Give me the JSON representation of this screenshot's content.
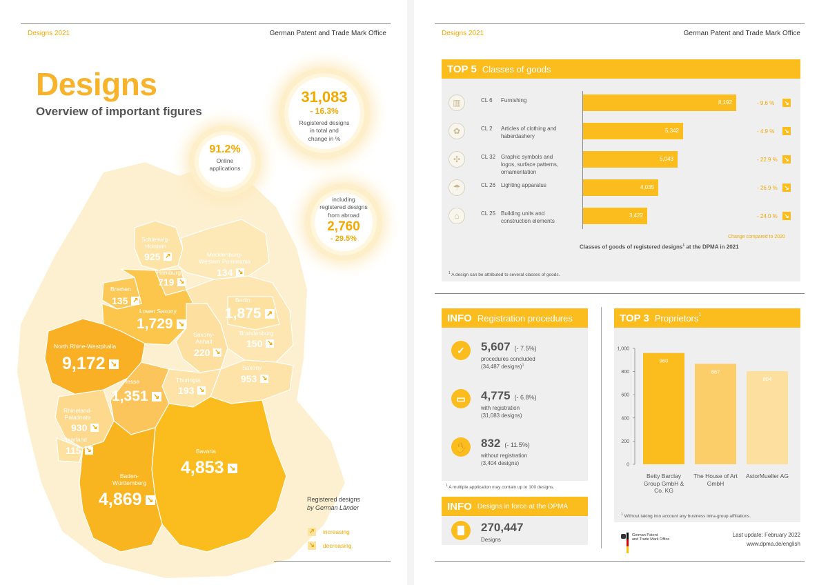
{
  "header": {
    "left_title": "Designs 2021",
    "publisher": "German Patent and Trade Mark Office"
  },
  "left": {
    "title": "Designs",
    "subtitle": "Overview of important figures",
    "total": {
      "value": "31,083",
      "change": "- 16.3%",
      "label1": "Registered designs",
      "label2": "in total and",
      "label3": "change in %"
    },
    "online": {
      "value": "91.2%",
      "label1": "Online",
      "label2": "applications"
    },
    "abroad": {
      "label1": "including",
      "label2": "registered designs",
      "label3": "from abroad",
      "value": "2,760",
      "change": "- 29.5%"
    },
    "regions": {
      "sh": {
        "name1": "Schleswig-",
        "name2": "Holstein",
        "value": "925"
      },
      "mv": {
        "name1": "Mecklenburg-",
        "name2": "Western Pomerania",
        "value": "134"
      },
      "hh": {
        "name": "Hamburg",
        "value": "719"
      },
      "hb": {
        "name": "Bremen",
        "value": "135"
      },
      "ni": {
        "name": "Lower Saxony",
        "value": "1,729"
      },
      "be": {
        "name": "Berlin",
        "value": "1,875"
      },
      "st": {
        "name1": "Saxony-",
        "name2": "Anhalt",
        "value": "220"
      },
      "bb": {
        "name": "Brandenburg",
        "value": "150"
      },
      "nw": {
        "name": "North Rhine-Westphalia",
        "value": "9,172"
      },
      "sn": {
        "name": "Saxony",
        "value": "953"
      },
      "he": {
        "name": "Hesse",
        "value": "1,351"
      },
      "th": {
        "name": "Thuringia",
        "value": "193"
      },
      "rp": {
        "name1": "Rhineland-",
        "name2": "Palatinate",
        "value": "930"
      },
      "sl": {
        "name": "Saarland",
        "value": "115"
      },
      "by": {
        "name": "Bavaria",
        "value": "4,853"
      },
      "bw": {
        "name1": "Baden-",
        "name2": "Württemberg",
        "value": "4,869"
      }
    },
    "legend": {
      "title1": "Registered designs",
      "title2": "by German Länder",
      "increasing": "increasing",
      "decreasing": "decreasing"
    }
  },
  "top5": {
    "label_top": "TOP 5",
    "label_rest": "Classes of goods",
    "caption": "Classes of goods of registered designs",
    "caption_sup": "1",
    "caption_end": " at the DPMA in 2021",
    "change_note": "Change compared to 2020",
    "footnote": "A design can be attributed to several classes of goods.",
    "footnote_sup": "1",
    "rows": [
      {
        "code": "CL 6",
        "name": "Furnishing",
        "value": "8,192",
        "change": "- 9.6 %"
      },
      {
        "code": "CL 2",
        "name": "Articles of clothing and haberdashery",
        "value": "5,342",
        "change": "- 4.9 %"
      },
      {
        "code": "CL 32",
        "name": "Graphic symbols and logos, surface patterns, ornamentation",
        "value": "5,043",
        "change": "- 22.9 %"
      },
      {
        "code": "CL 26",
        "name": "Lighting apparatus",
        "value": "4,035",
        "change": "- 26.9 %"
      },
      {
        "code": "CL 25",
        "name": "Building units and construction elements",
        "value": "3,422",
        "change": "- 24.0 %"
      }
    ]
  },
  "info1": {
    "label_top": "INFO",
    "label_rest": "Registration procedures",
    "items": [
      {
        "value": "5,607",
        "change": "(- 7.5%)",
        "sub1": "procedures concluded",
        "sub2": "(34,487 designs)",
        "sub2_sup": "1"
      },
      {
        "value": "4,775",
        "change": "(- 6.8%)",
        "sub1": "with registration",
        "sub2": "(31,083 designs)"
      },
      {
        "value": "832",
        "change": "(- 11.5%)",
        "sub1": "without registration",
        "sub2": "(3,404 designs)"
      }
    ],
    "footnote_sup": "1",
    "footnote": "A multiple application may contain up to 100 designs."
  },
  "info2": {
    "label_top": "INFO",
    "label_rest": "Designs in force at the DPMA",
    "value": "270,447",
    "sub": "Designs"
  },
  "top3": {
    "label_top": "TOP 3",
    "label_rest": "Proprietors",
    "label_sup": "1",
    "footnote_sup": "1",
    "footnote": "Without taking into account any business intra-group affiliations."
  },
  "footer": {
    "logo_line1": "German Patent",
    "logo_line2": "and Trade Mark Office",
    "update": "Last update: February 2022",
    "url": "www.dpma.de/english"
  },
  "colors": {
    "accent": "#fbbc1e",
    "accent_text": "#f2a900",
    "panel": "#efefef"
  },
  "chart_data": {
    "type": "bar",
    "categories": [
      "Betty Barclay Group GmbH & Co. KG",
      "The House of Art GmbH",
      "AstorMueller AG"
    ],
    "values": [
      960,
      867,
      804
    ],
    "ylim": [
      0,
      1000
    ],
    "yticks": [
      0,
      200,
      400,
      600,
      800,
      1000
    ],
    "ytick_labels": [
      "0",
      "200",
      "400",
      "600",
      "800",
      "1,000"
    ],
    "value_labels": [
      "960",
      "867",
      "804"
    ],
    "bar_colors": [
      "#fbbc1e",
      "#fcce6a",
      "#fddfa0"
    ],
    "grid": false
  }
}
